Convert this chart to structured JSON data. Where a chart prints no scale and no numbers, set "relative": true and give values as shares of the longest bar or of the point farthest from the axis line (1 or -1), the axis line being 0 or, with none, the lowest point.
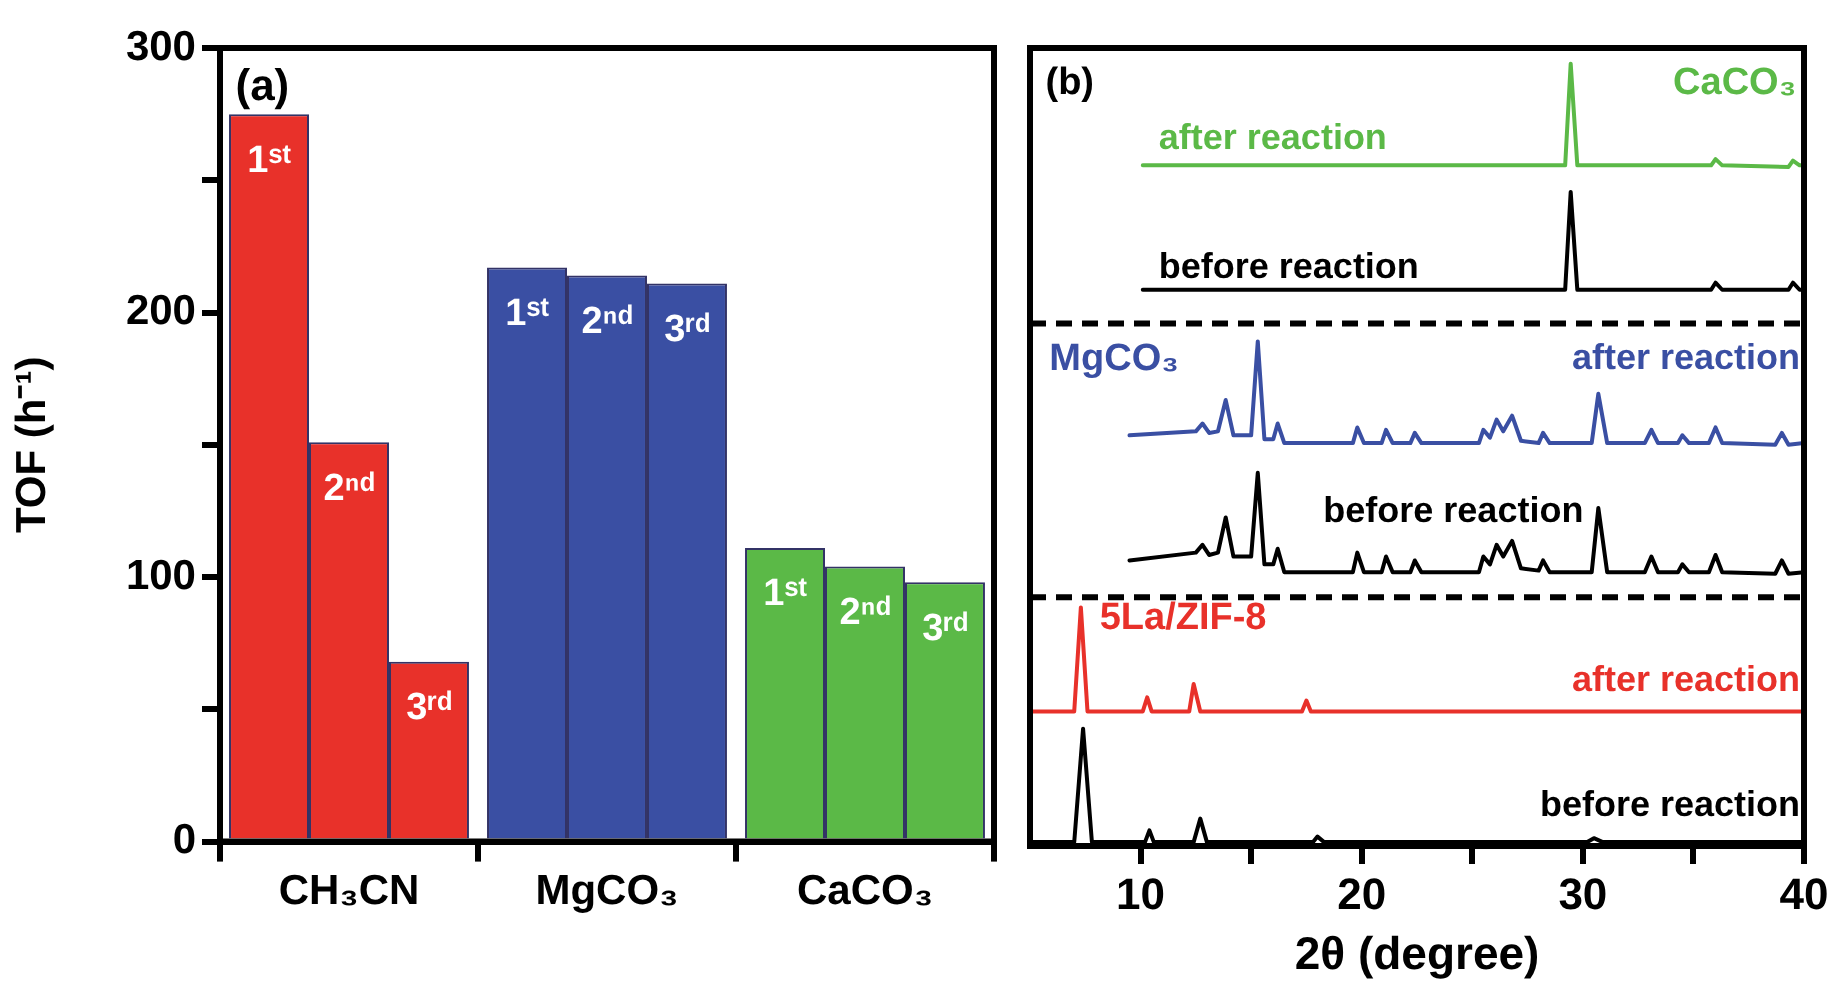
{
  "chart_data": [
    {
      "type": "bar",
      "annotations": [
        "(a)"
      ],
      "ylabel": "TOF (h⁻¹)",
      "categories": [
        "CH₃CN",
        "MgCO₃",
        "CaCO₃"
      ],
      "series": [
        {
          "name": "1ˢᵗ",
          "colors": [
            "#e8312a",
            "#3a4fa3",
            "#5bb947"
          ],
          "values": [
            275,
            217,
            111
          ]
        },
        {
          "name": "2ⁿᵈ",
          "colors": [
            "#e8312a",
            "#3a4fa3",
            "#5bb947"
          ],
          "values": [
            151,
            214,
            104
          ]
        },
        {
          "name": "3ʳᵈ",
          "colors": [
            "#e8312a",
            "#3a4fa3",
            "#5bb947"
          ],
          "values": [
            68,
            211,
            98
          ]
        }
      ],
      "ylim": [
        0,
        300
      ],
      "yticks": [
        0,
        {
          "value": 50,
          "label": null
        },
        100,
        {
          "value": 150,
          "label": null
        },
        200,
        {
          "value": 250,
          "label": null
        },
        300
      ],
      "grid": false,
      "legend": false
    },
    {
      "type": "line",
      "relative": true,
      "annotations": [
        "(b)",
        "CaCO₃",
        "MgCO₃",
        "5La/ZIF-8"
      ],
      "xlabel": "2θ (degree)",
      "xlim": [
        5,
        40
      ],
      "xticks": [
        10,
        {
          "value": 15,
          "label": null
        },
        20,
        {
          "value": 25,
          "label": null
        },
        30,
        {
          "value": 35,
          "label": null
        },
        40
      ],
      "grid": false,
      "legend": false,
      "marker": "none",
      "line_style": "solid",
      "ref_lines": [
        {
          "axis": "y",
          "value": 0.318,
          "color": "#000000",
          "line_style": "dashed"
        },
        {
          "axis": "y",
          "value": 0.668,
          "color": "#000000",
          "line_style": "dashed"
        }
      ],
      "series": [
        {
          "name": "before reaction",
          "color": "#000000",
          "x": [
            5,
            7.0,
            7.4,
            7.8,
            10.2,
            10.4,
            10.6,
            12.4,
            12.7,
            13.0,
            17.8,
            18.0,
            18.3,
            30.2,
            30.5,
            30.9,
            40
          ],
          "values": [
            0.005,
            0.005,
            0.15,
            0.005,
            0.005,
            0.02,
            0.005,
            0.005,
            0.035,
            0.005,
            0.005,
            0.012,
            0.005,
            0.005,
            0.01,
            0.005,
            0.005
          ]
        },
        {
          "name": "after reaction",
          "color": "#e8312a",
          "x": [
            5,
            7.0,
            7.3,
            7.6,
            10.1,
            10.3,
            10.5,
            12.2,
            12.4,
            12.7,
            17.3,
            17.5,
            17.7,
            40
          ],
          "values": [
            0.172,
            0.172,
            0.305,
            0.172,
            0.172,
            0.19,
            0.172,
            0.172,
            0.207,
            0.172,
            0.172,
            0.186,
            0.172,
            0.172
          ]
        },
        {
          "name": "before reaction",
          "color": "#000000",
          "x": [
            9.5,
            12.5,
            12.8,
            13.1,
            13.5,
            13.85,
            14.2,
            15.0,
            15.3,
            15.6,
            16.0,
            16.2,
            16.5,
            19.6,
            19.8,
            20.1,
            20.9,
            21.1,
            21.4,
            22.2,
            22.4,
            22.7,
            25.3,
            25.5,
            25.8,
            26.1,
            26.4,
            26.8,
            27.2,
            28.0,
            28.2,
            28.5,
            30.4,
            30.7,
            31.1,
            32.8,
            33.1,
            33.4,
            34.3,
            34.5,
            34.8,
            35.7,
            36.0,
            36.3,
            38.7,
            39.0,
            39.3,
            40
          ],
          "values": [
            0.365,
            0.375,
            0.385,
            0.372,
            0.375,
            0.42,
            0.37,
            0.37,
            0.477,
            0.36,
            0.36,
            0.38,
            0.35,
            0.35,
            0.375,
            0.35,
            0.35,
            0.37,
            0.35,
            0.35,
            0.365,
            0.35,
            0.35,
            0.37,
            0.36,
            0.385,
            0.37,
            0.39,
            0.355,
            0.352,
            0.365,
            0.35,
            0.35,
            0.432,
            0.35,
            0.35,
            0.37,
            0.35,
            0.35,
            0.36,
            0.35,
            0.35,
            0.372,
            0.35,
            0.348,
            0.365,
            0.348,
            0.35
          ]
        },
        {
          "name": "after reaction",
          "color": "#3a4fa3",
          "x": [
            9.5,
            12.5,
            12.8,
            13.1,
            13.5,
            13.85,
            14.2,
            15.0,
            15.3,
            15.6,
            16.0,
            16.2,
            16.5,
            19.6,
            19.8,
            20.1,
            20.9,
            21.1,
            21.4,
            22.2,
            22.4,
            22.7,
            25.3,
            25.5,
            25.8,
            26.1,
            26.4,
            26.8,
            27.2,
            28.0,
            28.2,
            28.5,
            30.4,
            30.7,
            31.1,
            32.8,
            33.1,
            33.4,
            34.3,
            34.5,
            34.8,
            35.7,
            36.0,
            36.3,
            38.7,
            39.0,
            39.3,
            40
          ],
          "values": [
            0.525,
            0.53,
            0.54,
            0.528,
            0.53,
            0.57,
            0.525,
            0.525,
            0.645,
            0.52,
            0.52,
            0.54,
            0.515,
            0.515,
            0.535,
            0.515,
            0.515,
            0.532,
            0.515,
            0.515,
            0.528,
            0.515,
            0.515,
            0.532,
            0.522,
            0.545,
            0.53,
            0.55,
            0.518,
            0.515,
            0.528,
            0.515,
            0.515,
            0.578,
            0.515,
            0.515,
            0.532,
            0.515,
            0.515,
            0.525,
            0.515,
            0.515,
            0.535,
            0.515,
            0.513,
            0.528,
            0.513,
            0.515
          ]
        },
        {
          "name": "before reaction",
          "color": "#000000",
          "x": [
            10.1,
            29.2,
            29.45,
            29.75,
            35.8,
            36.0,
            36.3,
            39.3,
            39.5,
            39.8,
            40
          ],
          "values": [
            0.711,
            0.711,
            0.836,
            0.711,
            0.711,
            0.72,
            0.711,
            0.711,
            0.72,
            0.711,
            0.711
          ]
        },
        {
          "name": "after reaction",
          "color": "#5bb947",
          "x": [
            10.1,
            29.2,
            29.45,
            29.75,
            35.8,
            36.0,
            36.3,
            39.3,
            39.5,
            39.8,
            40
          ],
          "values": [
            0.87,
            0.87,
            1.0,
            0.87,
            0.87,
            0.878,
            0.87,
            0.868,
            0.876,
            0.87,
            0.87
          ]
        }
      ]
    }
  ]
}
